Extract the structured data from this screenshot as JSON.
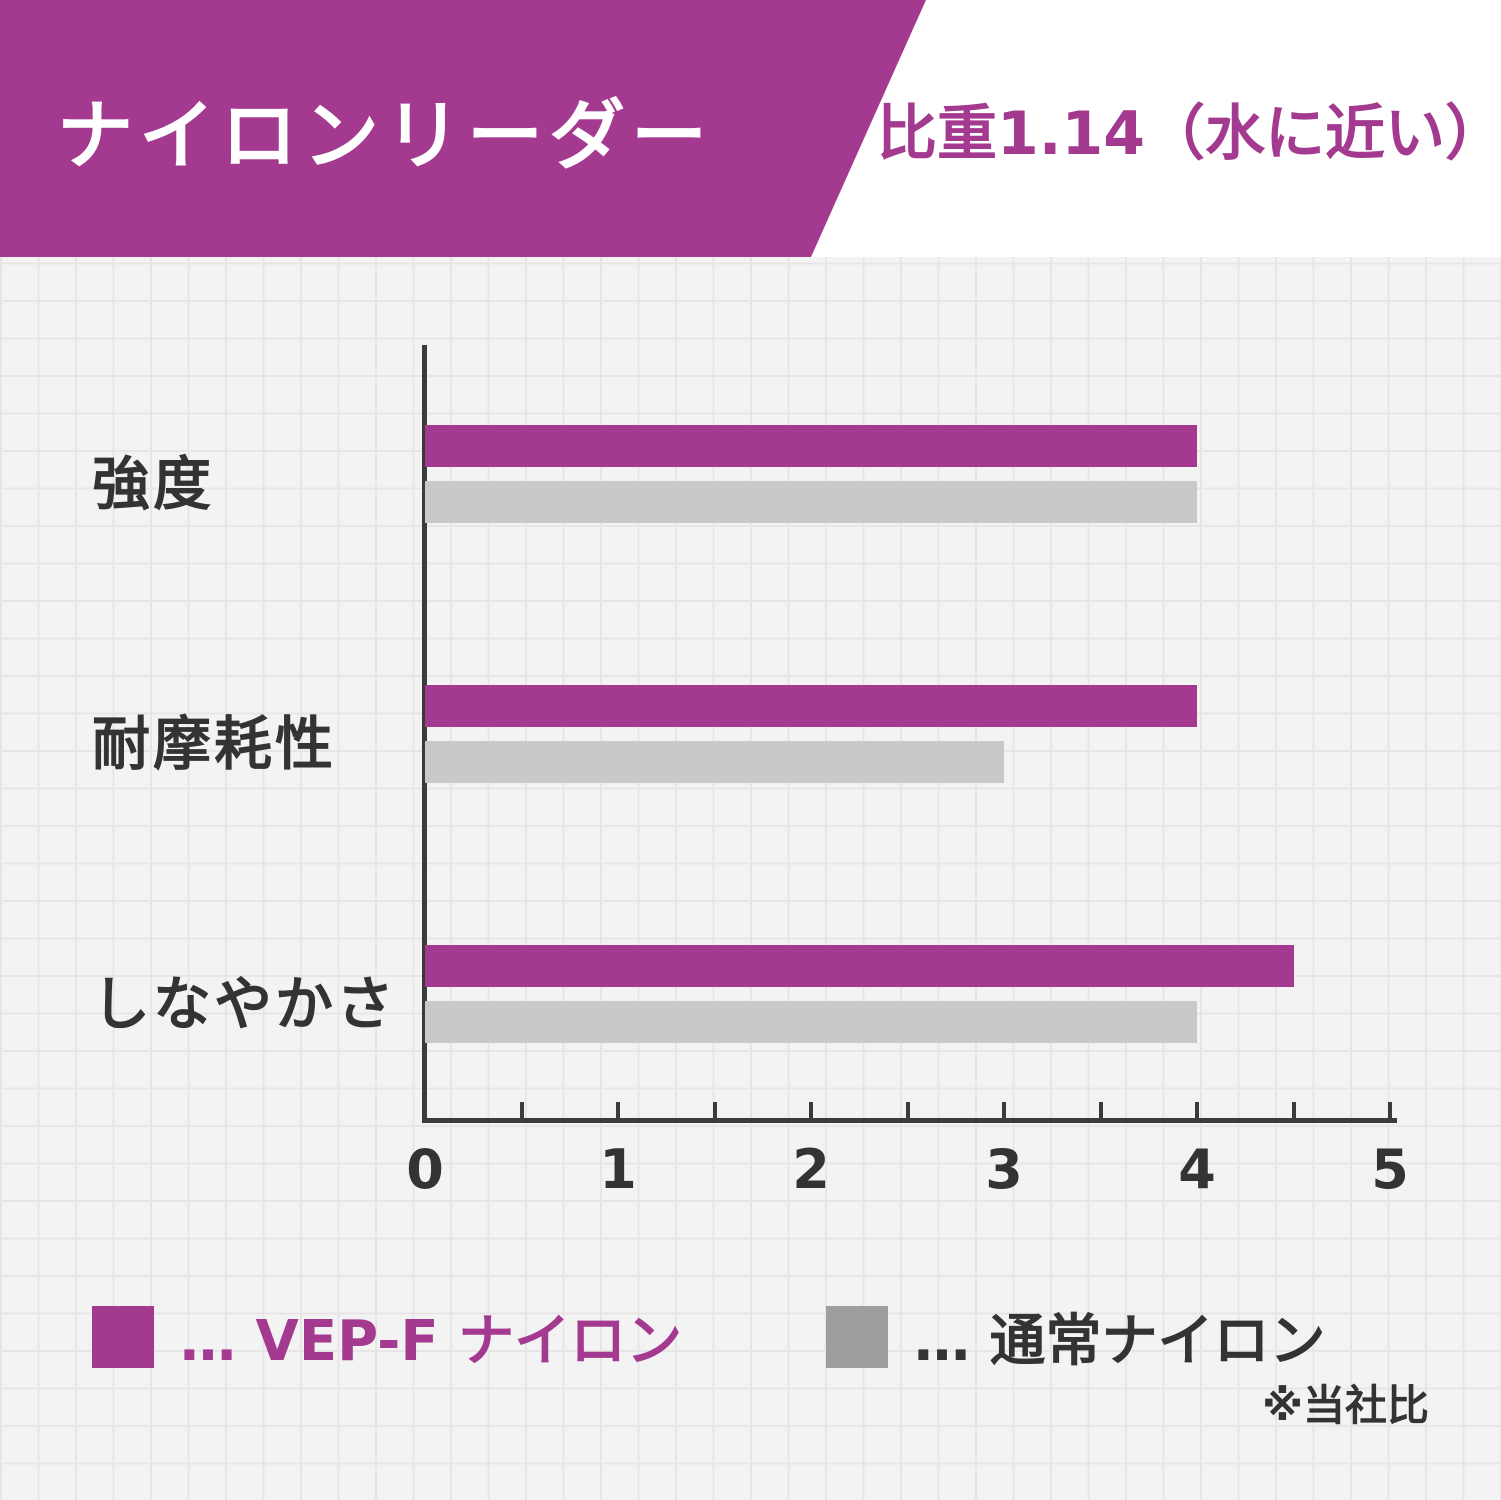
{
  "header": {
    "title": "ナイロンリーダー",
    "badge": "比重1.14（水に近い）"
  },
  "chart_data": {
    "type": "bar",
    "orientation": "horizontal",
    "title": "ナイロンリーダー",
    "categories": [
      "強度",
      "耐摩耗性",
      "しなやかさ"
    ],
    "series": [
      {
        "name": "VEP-F ナイロン",
        "color": "#a43990",
        "values": [
          4,
          4,
          4.5
        ]
      },
      {
        "name": "通常ナイロン",
        "color": "#c9c9c9",
        "values": [
          4,
          3,
          4
        ]
      }
    ],
    "xlim": [
      0,
      5
    ],
    "tick_step": 1,
    "minor_tick_step": 0.5,
    "tick_labels": [
      "0",
      "1",
      "2",
      "3",
      "4",
      "5"
    ],
    "grid": false,
    "legend_position": "bottom"
  },
  "legend": {
    "items": [
      {
        "label": "… VEP-F ナイロン",
        "swatch": "#a43990",
        "text_color": "#a43990"
      },
      {
        "label": "… 通常ナイロン",
        "swatch": "#9e9e9e",
        "text_color": "#333333"
      }
    ]
  },
  "footnote": "※当社比",
  "colors": {
    "accent": "#a43990",
    "bar_gray": "#c9c9c9",
    "legend_gray": "#9e9e9e",
    "axis": "#3b3b3b",
    "text": "#333333",
    "background": "#f4f3f3",
    "grid_line": "#e7e5e5"
  }
}
